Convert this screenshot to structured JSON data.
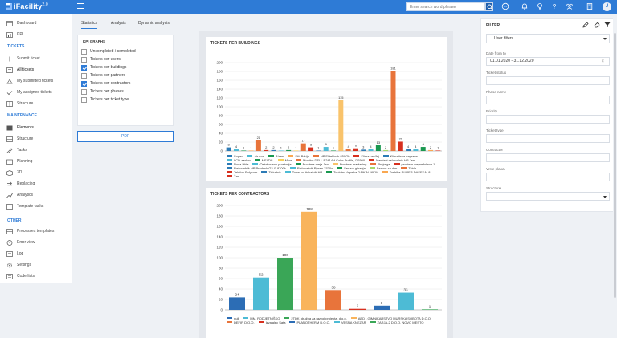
{
  "app": {
    "name": "iFacility",
    "version": "2.0"
  },
  "topbar": {
    "search_placeholder": "Enter search word phrase"
  },
  "user": {
    "avatar_initial": "J"
  },
  "sidebar": {
    "items_top": [
      {
        "label": "Dashboard",
        "icon": "dashboard-icon"
      },
      {
        "label": "KPI",
        "icon": "kpi-icon"
      }
    ],
    "tickets_title": "TICKETS",
    "tickets": [
      {
        "label": "Submit ticket",
        "icon": "plus-icon"
      },
      {
        "label": "All tickets",
        "icon": "ticket-icon"
      },
      {
        "label": "My submitted tickets",
        "icon": "submitted-icon"
      },
      {
        "label": "My assigned tickets",
        "icon": "assigned-icon"
      },
      {
        "label": "Structure",
        "icon": "structure-icon"
      }
    ],
    "maintenance_title": "MAINTENANCE",
    "maintenance": [
      {
        "label": "Elements",
        "icon": "elements-icon"
      },
      {
        "label": "Structure",
        "icon": "structure-icon"
      },
      {
        "label": "Tasks",
        "icon": "tasks-icon"
      },
      {
        "label": "Planning",
        "icon": "calendar-icon"
      },
      {
        "label": "3D",
        "icon": "cube-icon"
      },
      {
        "label": "Replacing",
        "icon": "replace-icon"
      },
      {
        "label": "Analytics",
        "icon": "analytics-icon"
      },
      {
        "label": "Template tasks",
        "icon": "template-icon"
      }
    ],
    "other_title": "OTHER",
    "other": [
      {
        "label": "Processes templates",
        "icon": "process-icon"
      },
      {
        "label": "Error view",
        "icon": "error-icon"
      },
      {
        "label": "Log",
        "icon": "log-icon"
      },
      {
        "label": "Settings",
        "icon": "settings-icon"
      },
      {
        "label": "Code lists",
        "icon": "list-icon"
      }
    ]
  },
  "tabs": [
    "Statistics",
    "Analysis",
    "Dynamic analysis"
  ],
  "kpi": {
    "title": "KPI GRAPHS",
    "options": [
      {
        "label": "Uncompleted / completed",
        "checked": false
      },
      {
        "label": "Tickets per users",
        "checked": false
      },
      {
        "label": "Tickets per buildings",
        "checked": true
      },
      {
        "label": "Tickets per partners",
        "checked": false
      },
      {
        "label": "Tickets per contractors",
        "checked": true
      },
      {
        "label": "Tickets per phases",
        "checked": false
      },
      {
        "label": "Tickets per ticket type",
        "checked": false
      }
    ],
    "pdf_label": "PDF"
  },
  "filter": {
    "title": "FILTER",
    "preset": "User filters",
    "date_label": "Date from to",
    "date_value": "01.01.2020 - 31.12.2020",
    "fields": [
      "Ticket status",
      "Phase name",
      "Priority",
      "Ticket type",
      "Contractor",
      "Vrste plana",
      "Structure"
    ]
  },
  "chart_data": [
    {
      "type": "bar",
      "title": "TICKETS PER BUILDINGS",
      "ylim": [
        0,
        200
      ],
      "yticks": [
        0,
        20,
        40,
        60,
        80,
        100,
        120,
        140,
        160,
        180,
        200
      ],
      "grid": true,
      "legend": "bottom",
      "categories": [
        "Sopec",
        "Air-con",
        "Alarm",
        "DM Brkija",
        "HP EliteBook 850Gb",
        "Klima uređaj",
        "Klimatizna naprava",
        "LCD zaslon",
        "MELTAL",
        "Miza",
        "Monitor DELL P2414H Color Profile, D6500",
        "Namizni računalnik HP Jeni",
        "Nova Hiša",
        "Oskrbovane prostorija",
        "Prostma meja Jen",
        "Prostme marketing",
        "Prejrega",
        "prostern mejnefishma 1",
        "Računalnik HP Prodesk G3 i7 8700k",
        "Računalnik Ryzen 3700x",
        "Senzor gibanja",
        "Senzor za dim",
        "Tabla",
        "Telefon Polycom",
        "Tiskalnik",
        "Toner za tiskalnik HP",
        "Toplotna črpalka DAIKIN 16KW",
        "Toshiba RUPER DASEKAI 8",
        "Žar"
      ],
      "values": [
        8,
        4,
        1,
        1,
        24,
        2,
        2,
        1,
        2,
        1,
        17,
        8,
        1,
        9,
        1,
        115,
        4,
        6,
        3,
        4,
        13,
        2,
        181,
        21,
        4,
        4,
        9,
        2,
        1
      ],
      "colors": [
        "#2c7bb6",
        "#4dbbd5",
        "#1a9850",
        "#f9a851",
        "#e8743b",
        "#d7301f",
        "#2c7bb6",
        "#4dbbd5",
        "#1a9850",
        "#f9d057",
        "#e8743b",
        "#d7301f",
        "#2c7bb6",
        "#4dbbd5",
        "#1a9850",
        "#f9c36b",
        "#e8743b",
        "#d7301f",
        "#2c7bb6",
        "#4dbbd5",
        "#1a9850",
        "#a6d96a",
        "#e8743b",
        "#d7301f",
        "#2c7bb6",
        "#4dbbd5",
        "#1a9850",
        "#f9a851",
        "#d7301f"
      ]
    },
    {
      "type": "bar",
      "title": "TICKETS PER CONTRACTORS",
      "ylim": [
        0,
        200
      ],
      "yticks": [
        0,
        20,
        40,
        60,
        80,
        100,
        120,
        140,
        160,
        180,
        200
      ],
      "grid": true,
      "legend": "bottom",
      "categories": [
        "null",
        "MM. PODJETNIŠKO",
        "2TDK, družba za razvoj projekta, d.o.o.",
        "ABD - GIMNIKARSTVO MURSKA SOBOTA D.O.O.",
        "DEFIR D.O.O.",
        "Izvajalec Sata",
        "PLANOTHERM D.O.O.",
        "VESNA KNEZAR",
        "ZARJA-2 D.O.O. NOVO MESTO"
      ],
      "values": [
        24,
        62,
        100,
        188,
        38,
        2,
        8,
        33,
        1
      ],
      "colors": [
        "#2c6db5",
        "#4dbbd5",
        "#3aa657",
        "#f9b45c",
        "#e8743b",
        "#d7301f",
        "#2c6db5",
        "#4dbbd5",
        "#3aa657"
      ]
    }
  ]
}
